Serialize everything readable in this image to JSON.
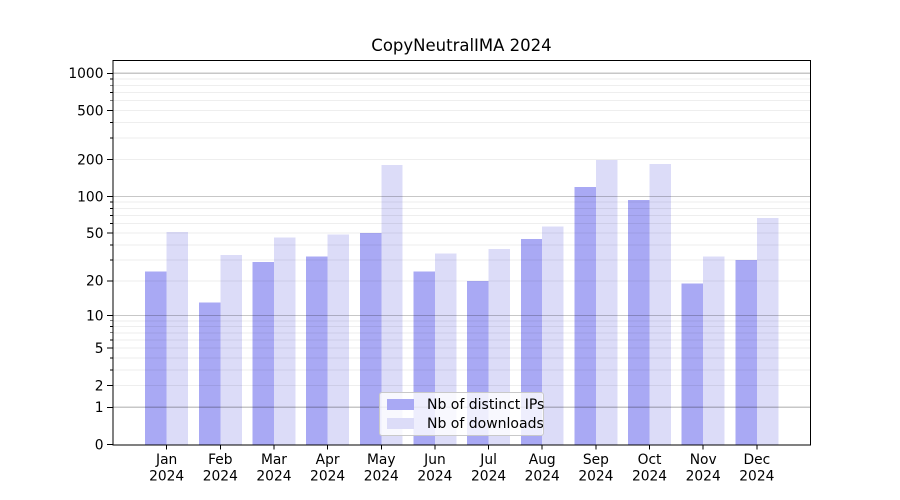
{
  "title": "CopyNeutralIMA 2024",
  "chart_data": {
    "type": "bar",
    "title": "CopyNeutralIMA 2024",
    "categories": [
      "Jan",
      "Feb",
      "Mar",
      "Apr",
      "May",
      "Jun",
      "Jul",
      "Aug",
      "Sep",
      "Oct",
      "Nov",
      "Dec"
    ],
    "x_tick_second_line": "2024",
    "series": [
      {
        "name": "Nb of distinct IPs",
        "color": "#a9a9f4",
        "values": [
          24,
          13,
          29,
          32,
          50,
          24,
          20,
          45,
          120,
          94,
          19,
          30
        ]
      },
      {
        "name": "Nb of downloads",
        "color": "#dcdcf8",
        "values": [
          51,
          33,
          46,
          49,
          181,
          34,
          37,
          57,
          199,
          184,
          32,
          67
        ]
      }
    ],
    "y_axis": {
      "scale": "log10(value+1)",
      "tick_values": [
        0,
        1,
        2,
        5,
        10,
        20,
        50,
        100,
        200,
        500,
        1000
      ],
      "range": [
        0,
        1250
      ],
      "minor_grid_multiples": [
        2,
        3,
        4,
        5,
        6,
        7,
        8,
        9
      ]
    },
    "xlabel": "",
    "ylabel": "",
    "grid": "horizontal",
    "legend_position": "lower center"
  },
  "colors": {
    "bar_ips": "#a9a9f4",
    "bar_downloads": "#dcdcf8",
    "major_grid": "rgba(0,0,0,0.22)",
    "minor_grid": "rgba(0,0,0,0.065)",
    "axis": "#000000",
    "legend_border": "#c9c9c9"
  }
}
